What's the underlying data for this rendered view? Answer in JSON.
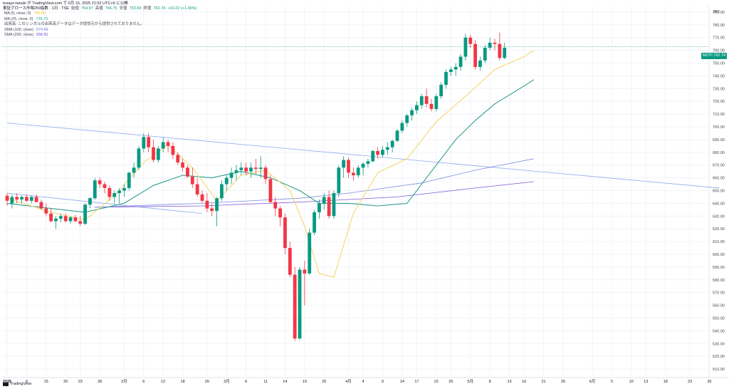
{
  "header": {
    "source_line": "tosayo-tanuki が TradingView.com で 6月 16, 2025 21:52 UTC+9 に公開",
    "symbol": "東証グロース市場250指数 · 1日 · TSE",
    "open_label": "始値",
    "open": "754.67",
    "high_label": "高値",
    "high": "766.75",
    "low_label": "安値",
    "low": "753.69",
    "close_label": "終値",
    "close": "762.74",
    "change": "+10.22 (+1.36%)",
    "up_color": "#089981",
    "down_color": "#f23645"
  },
  "indicators": [
    {
      "name": "MA (5, close, 0)",
      "value": "760.00",
      "color": "#f5d76e"
    },
    {
      "name": "MA (25, close, 0)",
      "value": "736.73",
      "color": "#2e9e8a"
    },
    {
      "name": "出来高: このシンボルの出来高データはデータ提供元から提供されておりません。",
      "value": "",
      "color": "#434651"
    },
    {
      "name": "SMA (100, close)",
      "value": "674.69",
      "color": "#7b8ee0"
    },
    {
      "name": "SMA (200, close)",
      "value": "656.91",
      "color": "#8156d8"
    }
  ],
  "price_badge": {
    "symbol": "MOTI",
    "value": "762.74"
  },
  "currency": "JPY",
  "footer": {
    "brand": "TradingView"
  },
  "chart_data": {
    "type": "candlestick",
    "title": "東証グロース市場250指数",
    "ylim": [
      505,
      795
    ],
    "y_ticks": [
      510,
      520,
      530,
      540,
      550,
      560,
      570,
      580,
      590,
      600,
      610,
      620,
      630,
      640,
      650,
      660,
      670,
      680,
      690,
      700,
      710,
      720,
      730,
      740,
      750,
      760,
      770,
      780,
      790
    ],
    "x_ticks": [
      "2025",
      "9",
      "15",
      "20",
      "23",
      "28",
      "2月",
      "6",
      "12",
      "18",
      "26",
      "3月",
      "6",
      "11",
      "14",
      "19",
      "25",
      "4月",
      "4",
      "9",
      "14",
      "17",
      "22",
      "25",
      "5月",
      "8",
      "13",
      "16",
      "21",
      "26",
      "6月",
      "5",
      "10",
      "13",
      "18",
      "23",
      "26"
    ],
    "x_tick_index": [
      0,
      4,
      8,
      12,
      15,
      19,
      24,
      28,
      32,
      36,
      41,
      45,
      49,
      53,
      57,
      61,
      65,
      70,
      73,
      77,
      81,
      84,
      88,
      91,
      95,
      99,
      103,
      106,
      110,
      114,
      120,
      124,
      128,
      131,
      135,
      140,
      144
    ],
    "candles": [
      [
        646,
        648,
        638,
        642
      ],
      [
        640,
        647,
        636,
        645
      ],
      [
        645,
        648,
        640,
        643
      ],
      [
        643,
        646,
        640,
        645
      ],
      [
        645,
        647,
        641,
        642
      ],
      [
        642,
        646,
        640,
        645
      ],
      [
        645,
        647,
        641,
        641
      ],
      [
        641,
        643,
        635,
        636
      ],
      [
        636,
        640,
        630,
        632
      ],
      [
        632,
        636,
        625,
        626
      ],
      [
        626,
        630,
        620,
        628
      ],
      [
        628,
        632,
        625,
        630
      ],
      [
        630,
        632,
        625,
        626
      ],
      [
        626,
        630,
        624,
        629
      ],
      [
        629,
        631,
        625,
        626
      ],
      [
        626,
        630,
        622,
        624
      ],
      [
        624,
        640,
        623,
        639
      ],
      [
        639,
        645,
        636,
        644
      ],
      [
        644,
        660,
        643,
        658
      ],
      [
        658,
        660,
        652,
        655
      ],
      [
        655,
        657,
        648,
        652
      ],
      [
        652,
        654,
        642,
        645
      ],
      [
        645,
        650,
        640,
        648
      ],
      [
        648,
        652,
        640,
        650
      ],
      [
        650,
        655,
        645,
        652
      ],
      [
        652,
        665,
        650,
        664
      ],
      [
        664,
        672,
        660,
        668
      ],
      [
        668,
        685,
        666,
        683
      ],
      [
        683,
        695,
        680,
        692
      ],
      [
        692,
        695,
        680,
        684
      ],
      [
        684,
        690,
        672,
        674
      ],
      [
        674,
        685,
        672,
        683
      ],
      [
        683,
        692,
        680,
        688
      ],
      [
        688,
        690,
        680,
        685
      ],
      [
        685,
        688,
        675,
        678
      ],
      [
        678,
        680,
        670,
        672
      ],
      [
        672,
        675,
        665,
        668
      ],
      [
        668,
        670,
        660,
        661
      ],
      [
        661,
        668,
        652,
        655
      ],
      [
        655,
        660,
        645,
        647
      ],
      [
        647,
        650,
        640,
        642
      ],
      [
        642,
        648,
        633,
        636
      ],
      [
        636,
        640,
        630,
        634
      ],
      [
        634,
        645,
        622,
        644
      ],
      [
        644,
        658,
        642,
        655
      ],
      [
        655,
        662,
        650,
        660
      ],
      [
        660,
        668,
        655,
        664
      ],
      [
        664,
        670,
        658,
        666
      ],
      [
        666,
        672,
        662,
        668
      ],
      [
        668,
        672,
        662,
        665
      ],
      [
        665,
        672,
        660,
        668
      ],
      [
        668,
        675,
        663,
        667
      ],
      [
        667,
        677,
        660,
        668
      ],
      [
        668,
        670,
        655,
        659
      ],
      [
        659,
        662,
        640,
        641
      ],
      [
        641,
        645,
        630,
        636
      ],
      [
        636,
        638,
        622,
        629
      ],
      [
        629,
        632,
        600,
        605
      ],
      [
        605,
        610,
        582,
        584
      ],
      [
        584,
        590,
        532,
        534
      ],
      [
        534,
        590,
        533,
        588
      ],
      [
        588,
        595,
        560,
        585
      ],
      [
        585,
        620,
        584,
        617
      ],
      [
        617,
        635,
        615,
        633
      ],
      [
        633,
        643,
        628,
        640
      ],
      [
        640,
        648,
        635,
        645
      ],
      [
        645,
        650,
        628,
        630
      ],
      [
        630,
        650,
        628,
        648
      ],
      [
        648,
        670,
        645,
        668
      ],
      [
        668,
        677,
        660,
        674
      ],
      [
        674,
        676,
        660,
        664
      ],
      [
        664,
        668,
        658,
        662
      ],
      [
        662,
        670,
        660,
        668
      ],
      [
        668,
        672,
        662,
        671
      ],
      [
        671,
        675,
        668,
        673
      ],
      [
        673,
        682,
        672,
        681
      ],
      [
        681,
        684,
        675,
        678
      ],
      [
        678,
        685,
        676,
        682
      ],
      [
        682,
        688,
        678,
        684
      ],
      [
        684,
        690,
        680,
        689
      ],
      [
        689,
        698,
        688,
        697
      ],
      [
        697,
        705,
        695,
        703
      ],
      [
        703,
        710,
        700,
        709
      ],
      [
        709,
        715,
        705,
        713
      ],
      [
        713,
        720,
        710,
        717
      ],
      [
        717,
        726,
        714,
        724
      ],
      [
        724,
        730,
        715,
        718
      ],
      [
        718,
        722,
        712,
        714
      ],
      [
        714,
        726,
        712,
        724
      ],
      [
        724,
        735,
        722,
        733
      ],
      [
        733,
        745,
        730,
        743
      ],
      [
        743,
        747,
        740,
        745
      ],
      [
        745,
        750,
        740,
        747
      ],
      [
        747,
        757,
        744,
        755
      ],
      [
        755,
        773,
        752,
        770
      ],
      [
        770,
        772,
        762,
        765
      ],
      [
        765,
        768,
        745,
        747
      ],
      [
        747,
        755,
        744,
        752
      ],
      [
        752,
        764,
        750,
        762
      ],
      [
        762,
        770,
        760,
        766
      ],
      [
        766,
        769,
        760,
        765
      ],
      [
        765,
        774,
        752,
        754
      ],
      [
        754,
        766,
        753,
        762
      ]
    ],
    "candle_start_index": 0,
    "ma5": [
      [
        0,
        644
      ],
      [
        9,
        633
      ],
      [
        16,
        627
      ],
      [
        22,
        646
      ],
      [
        28,
        672
      ],
      [
        33,
        686
      ],
      [
        38,
        668
      ],
      [
        43,
        642
      ],
      [
        48,
        662
      ],
      [
        53,
        666
      ],
      [
        58,
        650
      ],
      [
        61,
        622
      ],
      [
        64,
        585
      ],
      [
        67,
        582
      ],
      [
        71,
        632
      ],
      [
        76,
        664
      ],
      [
        82,
        675
      ],
      [
        88,
        704
      ],
      [
        94,
        724
      ],
      [
        100,
        745
      ],
      [
        106,
        755
      ],
      [
        108,
        760
      ]
    ],
    "ma25": [
      [
        0,
        640
      ],
      [
        9,
        636
      ],
      [
        16,
        633
      ],
      [
        24,
        640
      ],
      [
        30,
        654
      ],
      [
        36,
        662
      ],
      [
        42,
        660
      ],
      [
        48,
        665
      ],
      [
        54,
        660
      ],
      [
        60,
        650
      ],
      [
        64,
        640
      ],
      [
        70,
        640
      ],
      [
        76,
        638
      ],
      [
        82,
        640
      ],
      [
        86,
        660
      ],
      [
        92,
        690
      ],
      [
        96,
        705
      ],
      [
        100,
        718
      ],
      [
        106,
        732
      ],
      [
        108,
        737
      ]
    ],
    "sma100": [
      [
        18,
        637
      ],
      [
        40,
        640
      ],
      [
        60,
        644
      ],
      [
        70,
        648
      ],
      [
        85,
        656
      ],
      [
        96,
        666
      ],
      [
        108,
        675
      ]
    ],
    "sma200": [
      [
        18,
        637
      ],
      [
        40,
        638
      ],
      [
        60,
        641
      ],
      [
        80,
        645
      ],
      [
        96,
        652
      ],
      [
        108,
        657
      ]
    ],
    "trendlines": [
      {
        "from": [
          0,
          703
        ],
        "to": [
          146,
          652
        ],
        "color": "#8fa8f0"
      },
      {
        "from": [
          0,
          648
        ],
        "to": [
          40,
          632
        ],
        "color": "#8fa8f0"
      }
    ],
    "last_price_line": 762.74
  }
}
